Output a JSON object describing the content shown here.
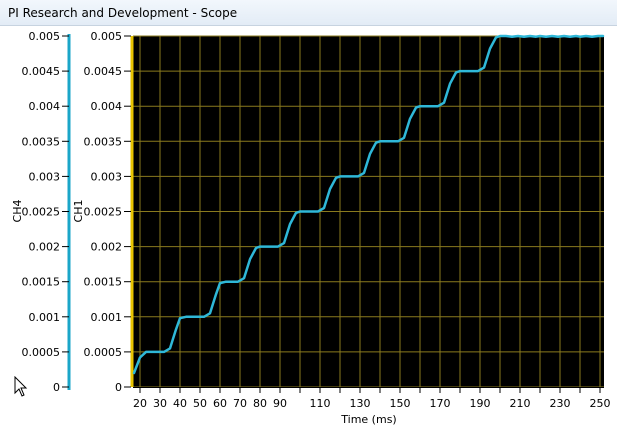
{
  "window": {
    "title": "PI Research and Development - Scope"
  },
  "colors": {
    "plot_background": "#000000",
    "grid": "#8a7a1e",
    "ch1_axis": "#e8c400",
    "ch4_axis": "#1aa6c8",
    "trace": "#2fb8d8"
  },
  "chart_data": {
    "type": "line",
    "xlabel": "Time (ms)",
    "x_ticks": [
      20,
      30,
      40,
      50,
      60,
      70,
      80,
      90,
      110,
      130,
      150,
      170,
      190,
      210,
      230,
      250
    ],
    "xlim": [
      16.5,
      252
    ],
    "axes": [
      {
        "label": "CH4",
        "ticks": [
          "0.005",
          "0.0045",
          "0.004",
          "0.0035",
          "0.003",
          "0.0025",
          "0.002",
          "0.0015",
          "0.001",
          "0.0005",
          "0"
        ],
        "ylim": [
          0,
          0.005
        ]
      },
      {
        "label": "CH1",
        "ticks": [
          "0.005",
          "0.0045",
          "0.004",
          "0.0035",
          "0.003",
          "0.0025",
          "0.002",
          "0.0015",
          "0.001",
          "0.0005",
          "0"
        ],
        "ylim": [
          0,
          0.005
        ]
      }
    ],
    "grid": true,
    "series": [
      {
        "x": [
          17.0,
          20.0,
          23.0,
          26.0,
          29.0,
          32.0,
          35.0,
          38.0,
          40.0,
          43.0,
          46.0,
          49.0,
          52.0,
          55.0,
          58.0,
          60.0,
          63.0,
          66.0,
          69.0,
          72.0,
          75.0,
          78.0,
          80.0,
          83.0,
          86.0,
          89.0,
          92.0,
          95.0,
          98.0,
          100.0,
          103.0,
          106.0,
          109.0,
          112.0,
          115.0,
          118.0,
          120.0,
          123.0,
          126.0,
          129.0,
          132.0,
          135.0,
          138.0,
          140.0,
          143.0,
          146.0,
          149.0,
          152.0,
          155.0,
          158.0,
          160.0,
          163.0,
          166.0,
          169.0,
          172.0,
          175.0,
          178.0,
          180.0,
          183.0,
          186.0,
          189.0,
          192.0,
          195.0,
          198.0,
          200.0,
          203.0,
          206.0,
          209.0,
          212.0,
          215.0,
          218.0,
          220.0,
          223.0,
          226.0,
          229.0,
          232.0,
          235.0,
          238.0,
          240.0,
          243.0,
          246.0,
          249.0,
          251.5
        ],
        "y": [
          0.0002,
          0.00042,
          0.0005,
          0.0005,
          0.0005,
          0.0005,
          0.00055,
          0.00082,
          0.00098,
          0.001,
          0.001,
          0.001,
          0.001,
          0.00105,
          0.00132,
          0.00148,
          0.0015,
          0.0015,
          0.0015,
          0.00155,
          0.00182,
          0.00198,
          0.002,
          0.002,
          0.002,
          0.002,
          0.00205,
          0.00232,
          0.00248,
          0.0025,
          0.0025,
          0.0025,
          0.0025,
          0.00255,
          0.00282,
          0.00298,
          0.003,
          0.003,
          0.003,
          0.003,
          0.00305,
          0.00332,
          0.00348,
          0.0035,
          0.0035,
          0.0035,
          0.0035,
          0.00355,
          0.00382,
          0.00398,
          0.004,
          0.004,
          0.004,
          0.004,
          0.00405,
          0.00432,
          0.00448,
          0.0045,
          0.0045,
          0.0045,
          0.0045,
          0.00455,
          0.00482,
          0.00498,
          0.005,
          0.005,
          0.00499,
          0.005,
          0.00499,
          0.005,
          0.00499,
          0.005,
          0.00499,
          0.005,
          0.00499,
          0.005,
          0.00499,
          0.005,
          0.00499,
          0.005,
          0.00499,
          0.005,
          0.005
        ]
      }
    ]
  }
}
